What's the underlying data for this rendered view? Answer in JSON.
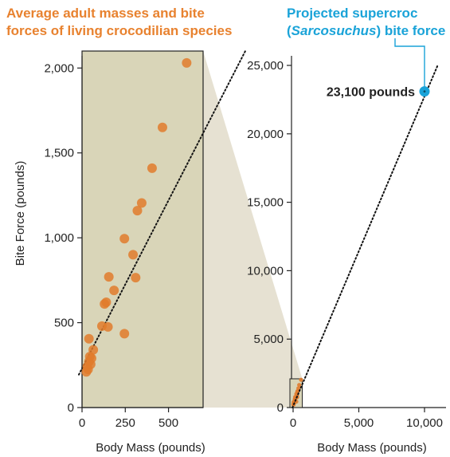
{
  "titles": {
    "left_line1": "Average adult masses and bite",
    "left_line2": "forces of living crocodilian species",
    "right_line1": "Projected supercroc",
    "right_line2_open": "(",
    "right_line2_italic": "Sarcosuchus",
    "right_line2_close": ") bite force"
  },
  "colors": {
    "left_title": "#e8822f",
    "right_title": "#1aa3d8",
    "points": "#e07b2c",
    "panel_fill": "#d9d5b8",
    "projection_fill": "#e6e1d2",
    "highlight": "#1aa3d8"
  },
  "chart_data": [
    {
      "type": "scatter",
      "title": "Average adult masses and bite forces of living crocodilian species",
      "xlabel": "Body Mass (pounds)",
      "ylabel": "Bite Force (pounds)",
      "xlim": [
        0,
        700
      ],
      "ylim": [
        0,
        2100
      ],
      "x_ticks": [
        0,
        250,
        500
      ],
      "x_tick_labels": [
        "0",
        "250",
        "500"
      ],
      "y_ticks": [
        0,
        500,
        1000,
        1500,
        2000
      ],
      "y_tick_labels": [
        "0",
        "500",
        "1,000",
        "1,500",
        "2,000"
      ],
      "trendline": [
        [
          0,
          100
        ],
        [
          760,
          2100
        ]
      ],
      "points": [
        {
          "x": 25,
          "y": 210
        },
        {
          "x": 30,
          "y": 240
        },
        {
          "x": 35,
          "y": 225
        },
        {
          "x": 40,
          "y": 270
        },
        {
          "x": 45,
          "y": 300
        },
        {
          "x": 50,
          "y": 255
        },
        {
          "x": 55,
          "y": 290
        },
        {
          "x": 65,
          "y": 340
        },
        {
          "x": 40,
          "y": 405
        },
        {
          "x": 115,
          "y": 480
        },
        {
          "x": 150,
          "y": 475
        },
        {
          "x": 245,
          "y": 435
        },
        {
          "x": 140,
          "y": 620
        },
        {
          "x": 130,
          "y": 610
        },
        {
          "x": 185,
          "y": 690
        },
        {
          "x": 155,
          "y": 770
        },
        {
          "x": 310,
          "y": 765
        },
        {
          "x": 295,
          "y": 900
        },
        {
          "x": 245,
          "y": 995
        },
        {
          "x": 320,
          "y": 1160
        },
        {
          "x": 345,
          "y": 1205
        },
        {
          "x": 405,
          "y": 1410
        },
        {
          "x": 465,
          "y": 1650
        },
        {
          "x": 605,
          "y": 2030
        }
      ]
    },
    {
      "type": "scatter",
      "title": "Projected supercroc (Sarcosuchus) bite force",
      "xlabel": "Body Mass (pounds)",
      "ylabel": "",
      "xlim": [
        -100,
        11500
      ],
      "ylim": [
        0,
        26000
      ],
      "x_ticks": [
        0,
        5000,
        10000
      ],
      "x_tick_labels": [
        "0",
        "5,000",
        "10,000"
      ],
      "y_ticks": [
        0,
        5000,
        10000,
        15000,
        20000,
        25000
      ],
      "y_tick_labels": [
        "0",
        "5,000",
        "10,000",
        "15,000",
        "20,000",
        "25,000"
      ],
      "trendline": [
        [
          -50,
          0
        ],
        [
          11000,
          25000
        ]
      ],
      "highlight": {
        "x": 10000,
        "y": 23100,
        "label": "23,100 pounds"
      }
    }
  ]
}
